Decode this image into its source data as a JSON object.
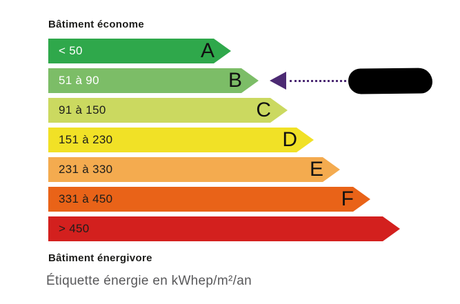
{
  "labels": {
    "top": "Bâtiment économe",
    "bottom": "Bâtiment énergivore",
    "caption": "Étiquette énergie en kWhep/m²/an"
  },
  "scale": {
    "rows": [
      {
        "letter": "A",
        "range": "< 50",
        "color": "#2FA84B",
        "text_color": "#FFFFFF",
        "arrow_width": 265
      },
      {
        "letter": "B",
        "range": "51 à 90",
        "color": "#7CBD67",
        "text_color": "#FFFFFF",
        "arrow_width": 305
      },
      {
        "letter": "C",
        "range": "91 à 150",
        "color": "#CBD960",
        "text_color": "#1D1D1B",
        "arrow_width": 347
      },
      {
        "letter": "D",
        "range": "151 à 230",
        "color": "#F1E126",
        "text_color": "#1D1D1B",
        "arrow_width": 385
      },
      {
        "letter": "E",
        "range": "231 à 330",
        "color": "#F4AB4F",
        "text_color": "#1D1D1B",
        "arrow_width": 423
      },
      {
        "letter": "F",
        "range": "331 à 450",
        "color": "#E96318",
        "text_color": "#1D1D1B",
        "arrow_width": 467
      },
      {
        "letter": "",
        "range": "> 450",
        "color": "#D3201E",
        "text_color": "#1D1D1B",
        "arrow_width": 510
      }
    ]
  },
  "marker": {
    "points_to_class": "B",
    "row_index": 1,
    "color": "#4C2A73",
    "redaction_color": "#000000"
  }
}
